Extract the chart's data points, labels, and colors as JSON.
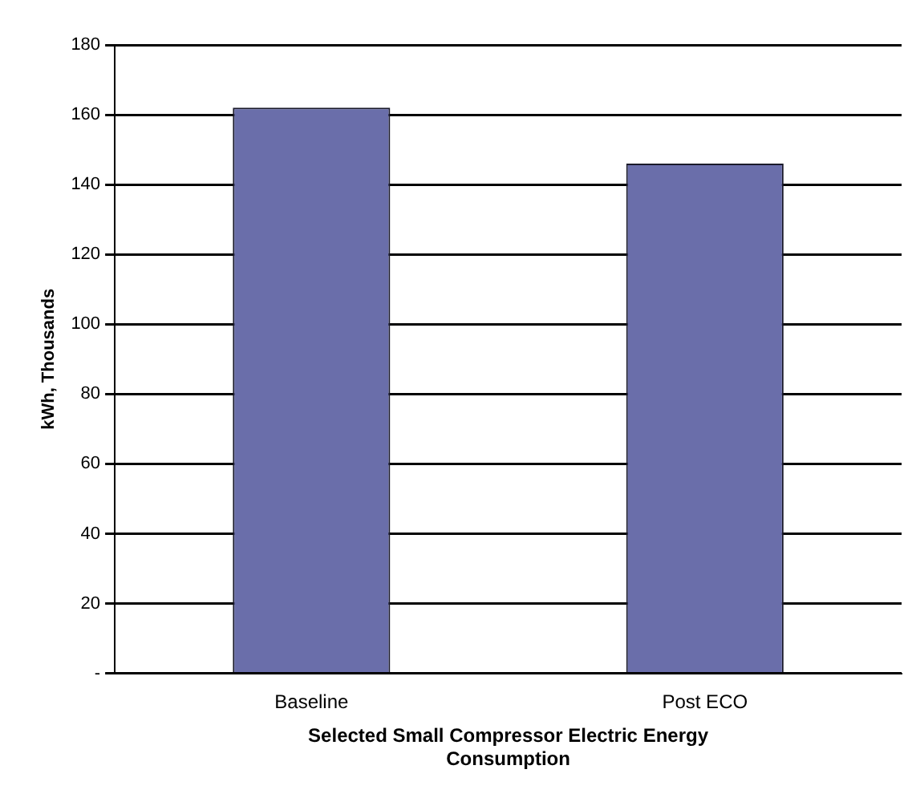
{
  "chart_data": {
    "type": "bar",
    "xlabel": "Selected Small Compressor Electric Energy Consumption",
    "ylabel": "kWh, Thousands",
    "categories": [
      "Baseline",
      "Post ECO"
    ],
    "values": [
      162,
      146
    ],
    "color": "#6a6eaa",
    "ylim": [
      0,
      180
    ],
    "yticks": [
      {
        "value": 0,
        "label": "-"
      },
      20,
      40,
      60,
      80,
      100,
      120,
      140,
      160,
      180
    ],
    "grid": "y",
    "legend": false
  }
}
